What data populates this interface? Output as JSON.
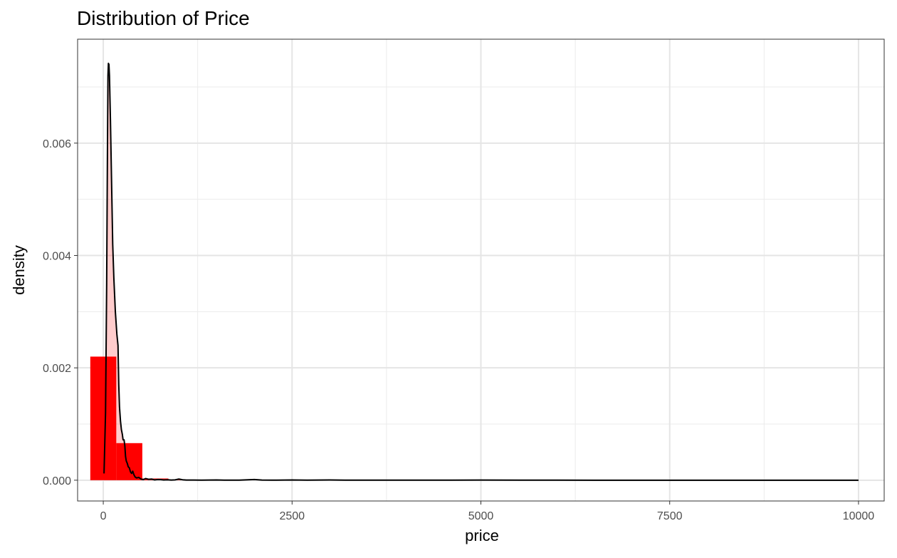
{
  "chart_data": {
    "type": "histogram",
    "title": "Distribution of Price",
    "xlabel": "price",
    "ylabel": "density",
    "xlim": [
      -340,
      10340
    ],
    "ylim": [
      -0.00037,
      0.00785
    ],
    "x_ticks": [
      0,
      2500,
      5000,
      7500,
      10000
    ],
    "x_tick_labels": [
      "0",
      "2500",
      "5000",
      "7500",
      "10000"
    ],
    "y_ticks": [
      0.0,
      0.002,
      0.004,
      0.006
    ],
    "y_tick_labels": [
      "0.000",
      "0.002",
      "0.004",
      "0.006"
    ],
    "grid": true,
    "legend": "none",
    "histogram": {
      "bin_width": 345,
      "bins": [
        {
          "x0": -172,
          "x1": 172,
          "density": 0.0022
        },
        {
          "x0": 172,
          "x1": 517,
          "density": 0.00066
        },
        {
          "x0": 517,
          "x1": 862,
          "density": 3e-05
        },
        {
          "x0": 862,
          "x1": 1207,
          "density": 8e-06
        }
      ],
      "fill": "#FF0000"
    },
    "density_curve": {
      "line_color": "#000000",
      "fill": "#FF0000",
      "fill_opacity": 0.2,
      "points": [
        [
          10,
          0.00012
        ],
        [
          30,
          0.0012
        ],
        [
          45,
          0.0035
        ],
        [
          55,
          0.0058
        ],
        [
          62,
          0.0072
        ],
        [
          68,
          0.00742
        ],
        [
          75,
          0.0074
        ],
        [
          82,
          0.0072
        ],
        [
          95,
          0.0064
        ],
        [
          110,
          0.0053
        ],
        [
          125,
          0.0042
        ],
        [
          140,
          0.0036
        ],
        [
          160,
          0.003
        ],
        [
          180,
          0.0026
        ],
        [
          195,
          0.0024
        ],
        [
          205,
          0.0017
        ],
        [
          215,
          0.0013
        ],
        [
          228,
          0.00105
        ],
        [
          240,
          0.0009
        ],
        [
          252,
          0.00082
        ],
        [
          262,
          0.00072
        ],
        [
          275,
          0.00072
        ],
        [
          285,
          0.00062
        ],
        [
          295,
          0.00042
        ],
        [
          305,
          0.00034
        ],
        [
          318,
          0.0003
        ],
        [
          330,
          0.00024
        ],
        [
          345,
          0.00022
        ],
        [
          360,
          0.00015
        ],
        [
          375,
          0.00012
        ],
        [
          390,
          0.00016
        ],
        [
          405,
          0.0001
        ],
        [
          420,
          6e-05
        ],
        [
          440,
          4e-05
        ],
        [
          470,
          5e-05
        ],
        [
          500,
          2e-05
        ],
        [
          530,
          1e-05
        ],
        [
          560,
          3e-05
        ],
        [
          600,
          1.5e-05
        ],
        [
          640,
          2e-05
        ],
        [
          680,
          5e-06
        ],
        [
          720,
          1.2e-05
        ],
        [
          760,
          1e-05
        ],
        [
          800,
          4e-06
        ],
        [
          850,
          8e-06
        ],
        [
          900,
          3e-06
        ],
        [
          950,
          6e-06
        ],
        [
          1000,
          2e-05
        ],
        [
          1050,
          8e-06
        ],
        [
          1100,
          2e-06
        ],
        [
          1200,
          3e-06
        ],
        [
          1300,
          1e-06
        ],
        [
          1400,
          2e-06
        ],
        [
          1500,
          4e-06
        ],
        [
          1600,
          1.5e-06
        ],
        [
          1700,
          1e-06
        ],
        [
          1800,
          1.5e-06
        ],
        [
          2000,
          1.2e-05
        ],
        [
          2100,
          2e-06
        ],
        [
          2300,
          1e-06
        ],
        [
          2500,
          4e-06
        ],
        [
          2700,
          5e-07
        ],
        [
          3000,
          4e-06
        ],
        [
          3200,
          5e-07
        ],
        [
          3500,
          4e-07
        ],
        [
          4000,
          4e-07
        ],
        [
          4500,
          3e-07
        ],
        [
          5000,
          3e-06
        ],
        [
          5500,
          3e-07
        ],
        [
          6000,
          3e-07
        ],
        [
          6500,
          2e-07
        ],
        [
          7000,
          2e-07
        ],
        [
          7500,
          2e-07
        ],
        [
          8000,
          2e-07
        ],
        [
          8500,
          2e-07
        ],
        [
          9000,
          2e-07
        ],
        [
          9500,
          1e-07
        ],
        [
          10000,
          1e-07
        ]
      ]
    }
  }
}
